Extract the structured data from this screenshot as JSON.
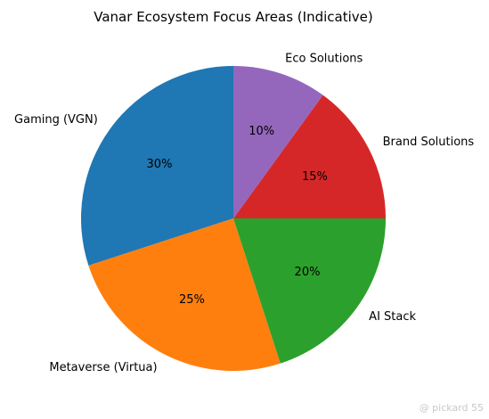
{
  "chart_data": {
    "type": "pie",
    "title": "Vanar Ecosystem Focus Areas (Indicative)",
    "start_angle_deg": 90,
    "direction": "counterclockwise",
    "slices": [
      {
        "label": "Gaming (VGN)",
        "value": 30,
        "pct_label": "30%",
        "color": "#1f77b4"
      },
      {
        "label": "Metaverse (Virtua)",
        "value": 25,
        "pct_label": "25%",
        "color": "#ff7f0e"
      },
      {
        "label": "AI Stack",
        "value": 20,
        "pct_label": "20%",
        "color": "#2ca02c"
      },
      {
        "label": "Brand Solutions",
        "value": 15,
        "pct_label": "15%",
        "color": "#d62728"
      },
      {
        "label": "Eco Solutions",
        "value": 10,
        "pct_label": "10%",
        "color": "#9467bd"
      }
    ]
  },
  "watermark": {
    "text": "@ pickard 55"
  }
}
